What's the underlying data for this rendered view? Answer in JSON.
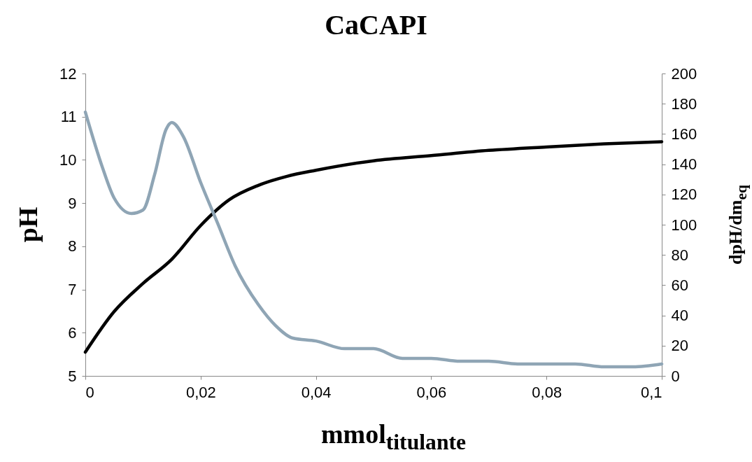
{
  "chart_data": {
    "type": "line",
    "title": "CaCAPI",
    "xlabel": "mmol$_{titulante}$",
    "ylabel": "pH",
    "y2label": "dpH/dm$_{eq}$",
    "xlim": [
      0,
      0.1
    ],
    "xticks": [
      0,
      {
        "value": 0.02,
        "label": "0,02"
      },
      {
        "value": 0.04,
        "label": "0,04"
      },
      {
        "value": 0.06,
        "label": "0,06"
      },
      {
        "value": 0.08,
        "label": "0,08"
      },
      {
        "value": 0.1,
        "label": "0,1"
      }
    ],
    "ylim": [
      5,
      12
    ],
    "yticks": [
      5,
      6,
      7,
      8,
      9,
      10,
      11,
      12
    ],
    "y2lim": [
      0,
      200
    ],
    "y2ticks": [
      0,
      20,
      40,
      60,
      80,
      100,
      120,
      140,
      160,
      180,
      200
    ],
    "grid": false,
    "marker": "none",
    "line_style": "solid",
    "series": [
      {
        "color": "#000000",
        "x": [
          0,
          0.005,
          0.01,
          0.015,
          0.02,
          0.025,
          0.03,
          0.035,
          0.04,
          0.05,
          0.06,
          0.07,
          0.08,
          0.09,
          0.1
        ],
        "values": [
          5.55,
          6.49,
          7.14,
          7.7,
          8.48,
          9.08,
          9.41,
          9.62,
          9.76,
          9.98,
          10.1,
          10.22,
          10.3,
          10.37,
          10.42
        ]
      },
      {
        "color": "#8fa5b5",
        "axis": "y2",
        "x": [
          0,
          0.003,
          0.005,
          0.008,
          0.01,
          0.012,
          0.014,
          0.015,
          0.017,
          0.02,
          0.023,
          0.026,
          0.03,
          0.033,
          0.036,
          0.04,
          0.045,
          0.05,
          0.055,
          0.06,
          0.065,
          0.07,
          0.075,
          0.085,
          0.09,
          0.095,
          0.1
        ],
        "values": [
          174.5,
          137.5,
          117.6,
          107.4,
          109.7,
          132.9,
          163,
          167.6,
          158.3,
          128,
          100.5,
          72.7,
          47.2,
          33.3,
          25,
          23.1,
          18,
          18,
          11.6,
          11.6,
          9.7,
          9.7,
          7.9,
          7.9,
          6,
          6,
          7.9
        ]
      }
    ]
  }
}
